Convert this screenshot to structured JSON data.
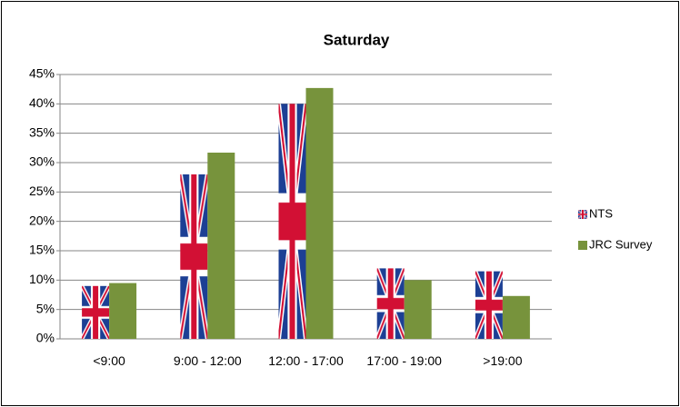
{
  "chart_data": {
    "type": "bar",
    "title": "Saturday",
    "categories": [
      "<9:00",
      "9:00 - 12:00",
      "12:00 - 17:00",
      "17:00 - 19:00",
      ">19:00"
    ],
    "series": [
      {
        "name": "NTS",
        "color": "#1c3f94",
        "values": [
          9,
          28,
          40,
          12,
          11.5
        ]
      },
      {
        "name": "JRC Survey",
        "color": "#77933c",
        "values": [
          9.5,
          31.7,
          42.7,
          10,
          7.3
        ]
      }
    ],
    "ylim": [
      0,
      45
    ],
    "yticks": [
      {
        "value": 0,
        "label": "0%"
      },
      {
        "value": 5,
        "label": "5%"
      },
      {
        "value": 10,
        "label": "10%"
      },
      {
        "value": 15,
        "label": "15%"
      },
      {
        "value": 20,
        "label": "20%"
      },
      {
        "value": 25,
        "label": "25%"
      },
      {
        "value": 30,
        "label": "30%"
      },
      {
        "value": 35,
        "label": "35%"
      },
      {
        "value": 40,
        "label": "40%"
      },
      {
        "value": 45,
        "label": "45%"
      }
    ],
    "grid": true,
    "legend": "right"
  }
}
